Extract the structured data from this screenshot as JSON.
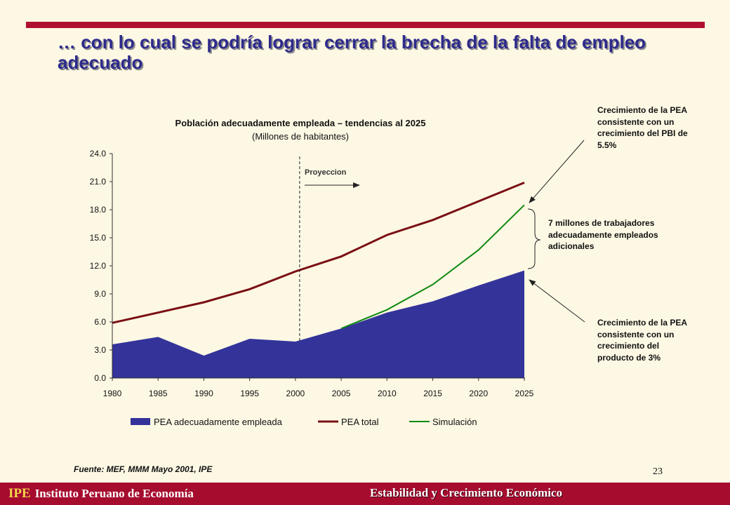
{
  "slide": {
    "title": "… con lo cual se podría lograr cerrar la brecha de la falta de empleo adecuado",
    "source": "Fuente: MEF, MMM Mayo 2001, IPE",
    "page_number": "23"
  },
  "footer": {
    "org_abbr": "IPE",
    "org_name": "Instituto Peruano de Economía",
    "section": "Estabilidad y Crecimiento Económico"
  },
  "annotations": {
    "top_right": "Crecimiento de la PEA consistente con un crecimiento del PBI de 5.5%",
    "middle_right": "7 millones de trabajadores adecuadamente empleados adicionales",
    "bottom_right": "Crecimiento de la PEA consistente con un crecimiento del producto de 3%",
    "projection_label": "Proyeccion"
  },
  "chart_data": {
    "type": "area",
    "title": "Población adecuadamente empleada – tendencias al 2025",
    "subtitle": "(Millones de habitantes)",
    "categories": [
      "1980",
      "1985",
      "1990",
      "1995",
      "2000",
      "2005",
      "2010",
      "2015",
      "2020",
      "2025"
    ],
    "y_ticks": [
      "0.0",
      "3.0",
      "6.0",
      "9.0",
      "12.0",
      "15.0",
      "18.0",
      "21.0",
      "24.0"
    ],
    "ylim": [
      0,
      24
    ],
    "projection_start": "2000",
    "series": [
      {
        "name": "PEA adecuadamente empleada",
        "type": "area",
        "color": "#33339a",
        "values": [
          3.6,
          4.4,
          2.4,
          4.2,
          3.9,
          5.3,
          7.0,
          8.2,
          9.9,
          11.5
        ]
      },
      {
        "name": "PEA total",
        "type": "line",
        "color": "#7a0f14",
        "values": [
          5.9,
          7.0,
          8.1,
          9.5,
          11.4,
          13.0,
          15.3,
          16.9,
          18.9,
          20.9
        ]
      },
      {
        "name": "Simulación",
        "type": "line",
        "color": "#118811",
        "values": [
          null,
          null,
          null,
          null,
          null,
          5.3,
          7.3,
          10.0,
          13.7,
          18.5
        ]
      }
    ],
    "legend_position": "bottom",
    "grid": false
  }
}
